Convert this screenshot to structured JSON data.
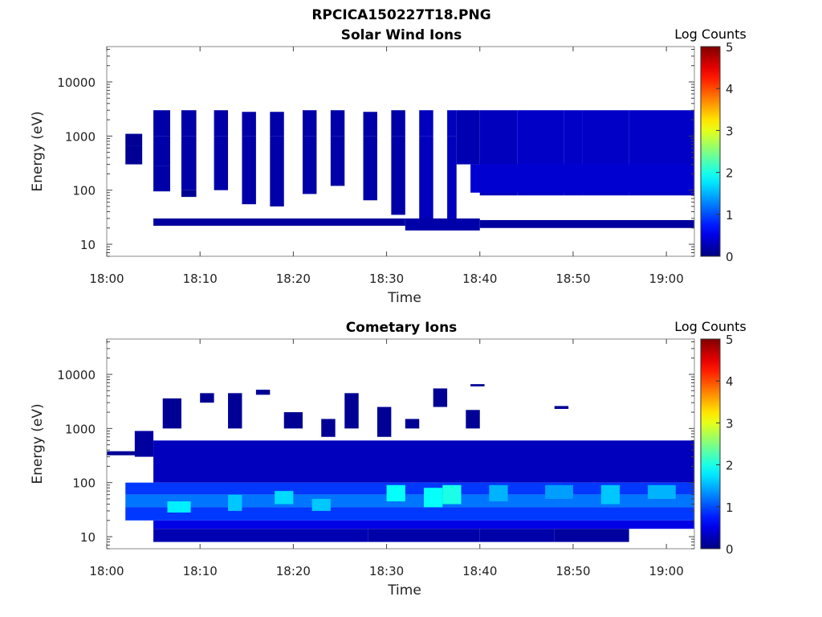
{
  "figure_title": "RPCICA150227T18.PNG",
  "chart_data": [
    {
      "type": "heatmap",
      "title": "Solar Wind Ions",
      "xlabel": "Time",
      "ylabel": "Energy (eV)",
      "xticks": [
        "18:00",
        "18:10",
        "18:20",
        "18:30",
        "18:40",
        "18:50",
        "19:00"
      ],
      "xlim_minutes": [
        0,
        63
      ],
      "yscale": "log",
      "ylim": [
        6,
        45000
      ],
      "yticks": [
        "10",
        "100",
        "1000",
        "10000"
      ],
      "colorbar": {
        "label": "Log Counts",
        "range": [
          0,
          5
        ],
        "ticks": [
          "0",
          "1",
          "2",
          "3",
          "4",
          "5"
        ],
        "colormap": "jet"
      },
      "grid": false,
      "cells": [
        [
          2,
          3.8,
          650,
          1100,
          0.1
        ],
        [
          2,
          3.8,
          300,
          650,
          0.1
        ],
        [
          5,
          6.8,
          1000,
          3000,
          0.2
        ],
        [
          5,
          6.8,
          280,
          1000,
          0.2
        ],
        [
          5,
          6.8,
          95,
          280,
          0.2
        ],
        [
          8,
          9.6,
          1000,
          3000,
          0.2
        ],
        [
          8,
          9.6,
          100,
          1000,
          0.2
        ],
        [
          8,
          9.6,
          75,
          100,
          0.1
        ],
        [
          11.5,
          13,
          1000,
          3000,
          0.2
        ],
        [
          11.5,
          13,
          100,
          1000,
          0.2
        ],
        [
          14.5,
          16,
          1000,
          2800,
          0.2
        ],
        [
          14.5,
          16,
          55,
          1000,
          0.2
        ],
        [
          17.5,
          19,
          1000,
          2800,
          0.2
        ],
        [
          17.5,
          19,
          50,
          1000,
          0.2
        ],
        [
          21,
          22.5,
          1000,
          3000,
          0.2
        ],
        [
          21,
          22.5,
          85,
          1000,
          0.2
        ],
        [
          24,
          25.5,
          1000,
          3000,
          0.2
        ],
        [
          24,
          25.5,
          120,
          1000,
          0.2
        ],
        [
          27.5,
          29,
          1000,
          2800,
          0.2
        ],
        [
          27.5,
          29,
          65,
          1000,
          0.2
        ],
        [
          30.5,
          32,
          1000,
          3000,
          0.2
        ],
        [
          30.5,
          32,
          35,
          1000,
          0.2
        ],
        [
          33.5,
          35,
          1000,
          3000,
          0.3
        ],
        [
          33.5,
          35,
          25,
          1000,
          0.3
        ],
        [
          36.5,
          37.5,
          1000,
          3000,
          0.3
        ],
        [
          36.5,
          37.5,
          25,
          1000,
          0.3
        ],
        [
          37.5,
          40,
          300,
          3000,
          0.25
        ],
        [
          40,
          42,
          80,
          3000,
          0.3
        ],
        [
          42,
          44,
          80,
          3000,
          0.3
        ],
        [
          44,
          49,
          80,
          3000,
          0.35
        ],
        [
          49,
          51,
          80,
          3000,
          0.35
        ],
        [
          51,
          56,
          80,
          3000,
          0.35
        ],
        [
          56,
          63,
          80,
          3000,
          0.35
        ],
        [
          39,
          63,
          90,
          300,
          0.4
        ],
        [
          5,
          32,
          22,
          30,
          0.15
        ],
        [
          32,
          40,
          18,
          30,
          0.2
        ],
        [
          40,
          63,
          20,
          28,
          0.15
        ]
      ]
    },
    {
      "type": "heatmap",
      "title": "Cometary Ions",
      "xlabel": "Time",
      "ylabel": "Energy (eV)",
      "xticks": [
        "18:00",
        "18:10",
        "18:20",
        "18:30",
        "18:40",
        "18:50",
        "19:00"
      ],
      "xlim_minutes": [
        0,
        63
      ],
      "yscale": "log",
      "ylim": [
        6,
        45000
      ],
      "yticks": [
        "10",
        "100",
        "1000",
        "10000"
      ],
      "colorbar": {
        "label": "Log Counts",
        "range": [
          0,
          5
        ],
        "ticks": [
          "0",
          "1",
          "2",
          "3",
          "4",
          "5"
        ],
        "colormap": "jet"
      },
      "grid": false,
      "cells": [
        [
          0,
          4,
          320,
          380,
          0.1
        ],
        [
          3,
          5,
          300,
          900,
          0.15
        ],
        [
          5,
          63,
          100,
          600,
          0.3
        ],
        [
          2,
          63,
          60,
          100,
          0.9
        ],
        [
          2,
          63,
          35,
          60,
          1.2
        ],
        [
          2,
          63,
          20,
          35,
          0.9
        ],
        [
          5,
          63,
          14,
          20,
          0.5
        ],
        [
          5,
          28,
          8,
          14,
          0.25
        ],
        [
          28,
          40,
          8,
          14,
          0.2
        ],
        [
          40,
          48,
          8,
          14,
          0.2
        ],
        [
          48,
          56,
          8,
          14,
          0.15
        ],
        [
          6,
          8,
          1000,
          3600,
          0.1
        ],
        [
          10,
          11.5,
          3000,
          4500,
          0.1
        ],
        [
          13,
          14.5,
          1000,
          4500,
          0.1
        ],
        [
          16,
          17.5,
          4200,
          5200,
          0.1
        ],
        [
          19,
          21,
          1000,
          2000,
          0.1
        ],
        [
          23,
          24.5,
          700,
          1500,
          0.1
        ],
        [
          25.5,
          27,
          1000,
          4500,
          0.1
        ],
        [
          29,
          30.5,
          700,
          2500,
          0.1
        ],
        [
          32,
          33.5,
          1000,
          1500,
          0.1
        ],
        [
          35,
          36.5,
          2500,
          5500,
          0.1
        ],
        [
          38.5,
          40,
          1000,
          2200,
          0.1
        ],
        [
          39,
          40.5,
          6000,
          6600,
          0.1
        ],
        [
          48,
          49.5,
          2300,
          2600,
          0.1
        ]
      ],
      "hot_cells": [
        [
          6.5,
          9,
          28,
          45,
          1.8
        ],
        [
          13,
          14.5,
          30,
          60,
          1.6
        ],
        [
          18,
          20,
          40,
          70,
          1.7
        ],
        [
          22,
          24,
          30,
          50,
          1.6
        ],
        [
          30,
          32,
          45,
          90,
          1.9
        ],
        [
          34,
          36,
          35,
          80,
          1.9
        ],
        [
          36,
          38,
          40,
          90,
          2.0
        ],
        [
          41,
          43,
          45,
          90,
          1.5
        ],
        [
          47,
          50,
          50,
          90,
          1.4
        ],
        [
          53,
          55,
          40,
          90,
          1.6
        ],
        [
          58,
          61,
          50,
          90,
          1.5
        ]
      ]
    }
  ]
}
